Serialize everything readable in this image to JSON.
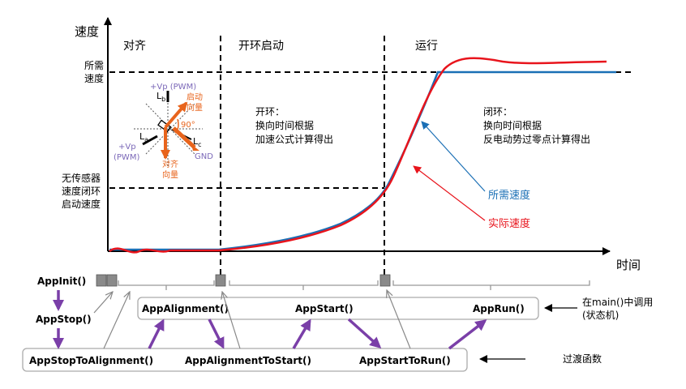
{
  "axes": {
    "y_label": "速度",
    "x_label": "时间",
    "y_tick_top": [
      "所需",
      "速度"
    ],
    "y_tick_mid": [
      "无传感器",
      "速度闭环",
      "启动速度"
    ]
  },
  "phases": {
    "align": "对齐",
    "open_loop": "开环启动",
    "run": "运行"
  },
  "notes": {
    "open_loop": [
      "开环：",
      "换向时间根据",
      "加速公式计算得出"
    ],
    "closed_loop": [
      "闭环：",
      "换向时间根据",
      "反电动势过零点计算得出"
    ]
  },
  "legend": {
    "required": "所需速度",
    "actual": "实际速度",
    "required_color": "#1a6fb5",
    "actual_color": "#e8141c"
  },
  "vector_diagram": {
    "vp_top": "+Vp (PWM)",
    "vp_left_1": "+Vp",
    "vp_left_2": "(PWM)",
    "start_vec_1": "启动",
    "start_vec_2": "向量",
    "align_vec_1": "对齐",
    "align_vec_2": "向量",
    "angle": "90°",
    "gnd": "GND",
    "lb": "L",
    "lb_sub": "b",
    "la": "L",
    "la_sub": "a",
    "lc": "L",
    "lc_sub": "c",
    "purple": "#7b68b8",
    "orange": "#e8641c"
  },
  "functions": {
    "init": "AppInit()",
    "stop": "AppStop()",
    "alignment": "AppAlignment()",
    "start": "AppStart()",
    "run": "AppRun()",
    "stop_to_align": "AppStopToAlignment()",
    "align_to_start": "AppAlignmentToStart()",
    "start_to_run": "AppStartToRun()",
    "arrow_color": "#7a3fa8"
  },
  "annotations": {
    "main_call_1": "在main()中调用",
    "main_call_2": "(状态机)",
    "transition": "过渡函数"
  }
}
